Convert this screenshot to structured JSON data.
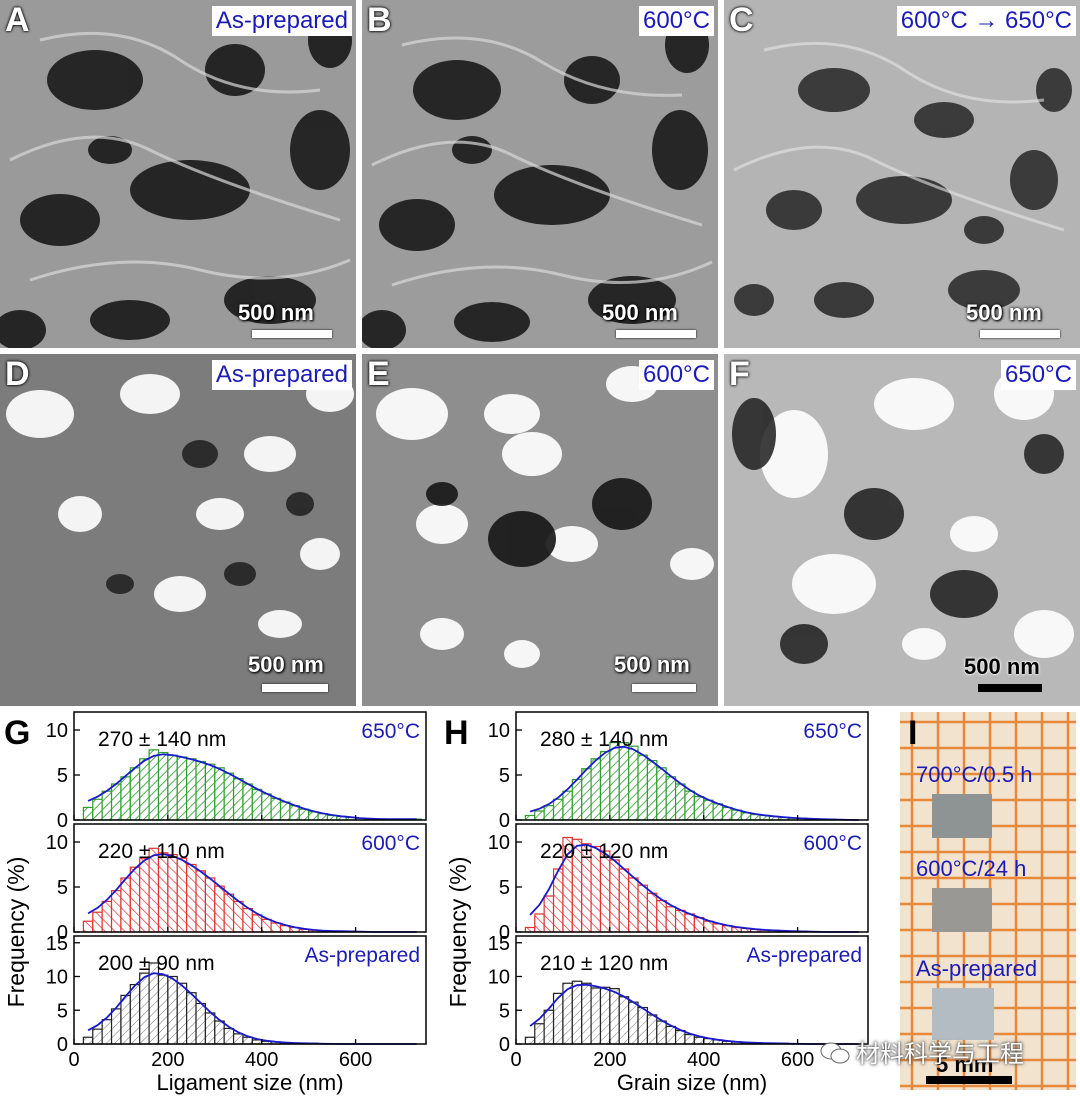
{
  "panels": {
    "A": {
      "letter": "A",
      "tag": "As-prepared",
      "scale": "500 nm"
    },
    "B": {
      "letter": "B",
      "tag": "600°C",
      "scale": "500 nm"
    },
    "C": {
      "letter": "C",
      "tag": "600°C → 650°C",
      "scale": "500 nm"
    },
    "D": {
      "letter": "D",
      "tag": "As-prepared",
      "scale": "500 nm"
    },
    "E": {
      "letter": "E",
      "tag": "600°C",
      "scale": "500 nm"
    },
    "F": {
      "letter": "F",
      "tag": "650°C",
      "scale": "500 nm"
    }
  },
  "photo_panel": {
    "letter": "I",
    "labels": [
      "700°C/0.5 h",
      "600°C/24 h",
      "As-prepared"
    ],
    "scale": "5 mm"
  },
  "watermark": "材料科学与工程",
  "colors": {
    "label_blue": "#1b1bb8",
    "green": "#2e9e2e",
    "red": "#e23030",
    "black": "#222222",
    "fit": "#1a1acc",
    "paper": "#f2e3cf",
    "grid": "#e8883a"
  },
  "chart_data": [
    {
      "panel": "G",
      "type": "bar",
      "xlabel": "Ligament size (nm)",
      "ylabel": "Frequency (%)",
      "xlim": [
        0,
        750
      ],
      "xticks": [
        0,
        200,
        400,
        600
      ],
      "bin_width": 20,
      "bin_start": 20,
      "series": [
        {
          "name": "650°C",
          "annotation": "270 ± 140 nm",
          "color": "#2e9e2e",
          "ylim": [
            0,
            12
          ],
          "yticks": [
            0,
            5,
            10
          ],
          "values": [
            1.4,
            2.3,
            3.2,
            4.0,
            4.8,
            5.8,
            6.8,
            7.8,
            7.5,
            7.2,
            7.0,
            6.8,
            6.5,
            6.2,
            5.8,
            5.2,
            4.6,
            4.0,
            3.4,
            2.9,
            2.4,
            2.0,
            1.6,
            1.2,
            0.9,
            0.7,
            0.5,
            0.4,
            0.3,
            0.2,
            0.1,
            0.1,
            0.1,
            0.1,
            0.1,
            0.1
          ]
        },
        {
          "name": "600°C",
          "annotation": "220 ± 110 nm",
          "color": "#e23030",
          "ylim": [
            0,
            12
          ],
          "yticks": [
            0,
            5,
            10
          ],
          "values": [
            1.2,
            2.2,
            3.4,
            4.6,
            6.0,
            7.2,
            8.2,
            9.3,
            8.8,
            8.6,
            8.2,
            7.5,
            6.8,
            6.0,
            5.1,
            4.2,
            3.4,
            2.6,
            1.9,
            1.4,
            1.0,
            0.7,
            0.5,
            0.3,
            0.2,
            0.1,
            0.1,
            0.1,
            0.1,
            0.0,
            0.0,
            0.0,
            0.0,
            0.0,
            0.0,
            0.0
          ]
        },
        {
          "name": "As-prepared",
          "annotation": "200 ± 90 nm",
          "color": "#222222",
          "ylim": [
            0,
            16
          ],
          "yticks": [
            0,
            5,
            10,
            15
          ],
          "values": [
            1.0,
            2.2,
            3.6,
            5.2,
            7.2,
            8.8,
            10.5,
            12.0,
            10.2,
            10.0,
            9.0,
            7.6,
            6.0,
            4.6,
            3.4,
            2.3,
            1.5,
            1.0,
            0.6,
            0.4,
            0.3,
            0.2,
            0.1,
            0.1,
            0.1,
            0.0,
            0.0,
            0.0,
            0.0,
            0.0,
            0.0,
            0.0,
            0.0,
            0.0,
            0.0,
            0.0
          ]
        }
      ]
    },
    {
      "panel": "H",
      "type": "bar",
      "xlabel": "Grain size (nm)",
      "ylabel": "Frequency (%)",
      "xlim": [
        0,
        750
      ],
      "xticks": [
        0,
        200,
        400,
        600
      ],
      "bin_width": 20,
      "bin_start": 20,
      "series": [
        {
          "name": "650°C",
          "annotation": "280 ± 140 nm",
          "color": "#2e9e2e",
          "ylim": [
            0,
            12
          ],
          "yticks": [
            0,
            5,
            10
          ],
          "values": [
            0.5,
            1.0,
            1.6,
            2.3,
            3.2,
            4.5,
            5.7,
            6.8,
            7.6,
            8.6,
            8.6,
            8.2,
            7.2,
            6.6,
            5.8,
            4.8,
            4.0,
            3.2,
            2.6,
            2.2,
            1.8,
            1.4,
            1.1,
            0.8,
            0.6,
            0.5,
            0.4,
            0.3,
            0.2,
            0.2,
            0.1,
            0.1,
            0.1,
            0.0,
            0.0,
            0.0
          ]
        },
        {
          "name": "600°C",
          "annotation": "220 ± 120 nm",
          "color": "#e23030",
          "ylim": [
            0,
            12
          ],
          "yticks": [
            0,
            5,
            10
          ],
          "values": [
            0.5,
            2.0,
            4.0,
            7.0,
            10.5,
            10.3,
            9.8,
            9.5,
            9.0,
            8.0,
            7.0,
            6.0,
            5.2,
            4.3,
            3.5,
            2.8,
            2.4,
            2.0,
            1.6,
            1.2,
            0.9,
            0.7,
            0.5,
            0.4,
            0.3,
            0.2,
            0.2,
            0.1,
            0.1,
            0.1,
            0.0,
            0.0,
            0.0,
            0.0,
            0.0,
            0.0
          ]
        },
        {
          "name": "As-prepared",
          "annotation": "210 ± 120 nm",
          "color": "#222222",
          "ylim": [
            0,
            16
          ],
          "yticks": [
            0,
            5,
            10,
            15
          ],
          "values": [
            1.0,
            3.0,
            5.0,
            7.5,
            9.0,
            9.3,
            9.0,
            8.3,
            8.4,
            8.2,
            7.0,
            6.2,
            5.4,
            4.3,
            3.4,
            2.6,
            2.0,
            1.4,
            1.0,
            0.8,
            0.6,
            0.4,
            0.3,
            0.2,
            0.2,
            0.1,
            0.1,
            0.1,
            0.0,
            0.0,
            0.0,
            0.0,
            0.0,
            0.0,
            0.0,
            0.0
          ]
        }
      ]
    }
  ]
}
